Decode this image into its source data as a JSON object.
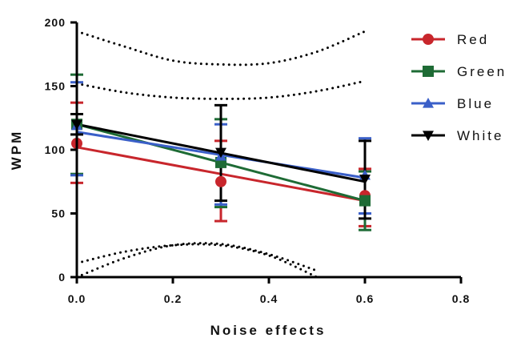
{
  "chart_data": {
    "type": "line",
    "title": "",
    "xlabel": "Noise effects",
    "ylabel": "WPM",
    "xlim": [
      0.0,
      0.8
    ],
    "ylim": [
      0,
      200
    ],
    "x_ticks": [
      "0.0",
      "0.2",
      "0.4",
      "0.6",
      "0.8"
    ],
    "y_ticks": [
      "0",
      "50",
      "100",
      "150",
      "200"
    ],
    "legend_position": "top-right",
    "x": [
      0.0,
      0.3,
      0.6
    ],
    "series": [
      {
        "name": "Red",
        "color": "#c8262c",
        "marker": "circle",
        "means": [
          105,
          75,
          64
        ],
        "err_low": [
          74,
          44,
          40
        ],
        "err_high": [
          137,
          107,
          85
        ],
        "fit": {
          "y0": 102,
          "y06": 60
        }
      },
      {
        "name": "Green",
        "color": "#1e6b35",
        "marker": "square",
        "means": [
          120,
          90,
          60
        ],
        "err_low": [
          81,
          55,
          37
        ],
        "err_high": [
          159,
          124,
          83
        ],
        "fit": {
          "y0": 120,
          "y06": 60
        }
      },
      {
        "name": "Blue",
        "color": "#3a5fc8",
        "marker": "triangle-up",
        "means": [
          119,
          95,
          80
        ],
        "err_low": [
          80,
          57,
          50
        ],
        "err_high": [
          153,
          120,
          109
        ],
        "fit": {
          "y0": 114,
          "y06": 78
        }
      },
      {
        "name": "White",
        "color": "#000000",
        "marker": "triangle-down",
        "means": [
          120,
          98,
          77
        ],
        "err_low": [
          112,
          60,
          46
        ],
        "err_high": [
          128,
          135,
          107
        ],
        "fit": {
          "y0": 120,
          "y06": 75
        }
      }
    ],
    "confidence_bands": [
      {
        "name": "outer",
        "x": [
          0.0,
          0.1,
          0.2,
          0.3,
          0.4,
          0.5,
          0.6
        ],
        "upper": [
          193,
          181,
          170,
          167,
          168,
          177,
          193
        ],
        "lower": [
          11,
          20,
          25,
          25,
          17,
          0,
          null
        ]
      },
      {
        "name": "inner",
        "x": [
          0.0,
          0.1,
          0.2,
          0.3,
          0.4,
          0.5,
          0.6
        ],
        "upper": [
          152,
          145,
          141,
          140,
          141,
          146,
          154
        ],
        "lower": [
          0,
          15,
          25,
          26,
          18,
          5,
          null
        ]
      }
    ]
  }
}
